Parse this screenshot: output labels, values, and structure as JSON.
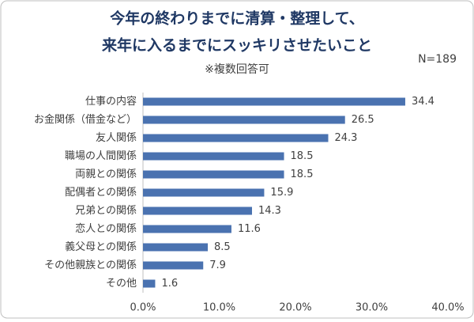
{
  "chart_data": {
    "type": "barh",
    "title": [
      "今年の終わりまでに清算・整理して、",
      "来年に入るまでにスッキリさせたいこと"
    ],
    "subtitle": "※複数回答可",
    "note": "N=189",
    "categories": [
      "仕事の内容",
      "お金関係（借金など）",
      "友人関係",
      "職場の人間関係",
      "両親との関係",
      "配偶者との関係",
      "兄弟との関係",
      "恋人との関係",
      "義父母との関係",
      "その他親族との関係",
      "その他"
    ],
    "values": [
      34.4,
      26.5,
      24.3,
      18.5,
      18.5,
      15.9,
      14.3,
      11.6,
      8.5,
      7.9,
      1.6
    ],
    "color": "#4a72b0",
    "xlim": [
      0,
      40
    ],
    "xticks": [
      {
        "value": 0,
        "label": "0.0%"
      },
      {
        "value": 10,
        "label": "10.0%"
      },
      {
        "value": 20,
        "label": "20.0%"
      },
      {
        "value": 30,
        "label": "30.0%"
      },
      {
        "value": 40,
        "label": "40.0%"
      }
    ],
    "grid": false
  }
}
